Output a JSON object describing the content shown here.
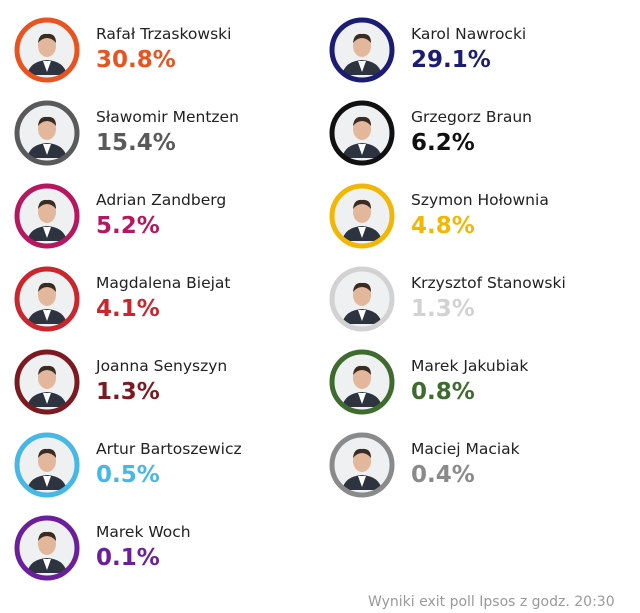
{
  "candidates": [
    {
      "name": "Rafał Trzaskowski",
      "result": "30.8%",
      "color": "#e8531f"
    },
    {
      "name": "Karol Nawrocki",
      "result": "29.1%",
      "color": "#1c1c74"
    },
    {
      "name": "Sławomir Mentzen",
      "result": "15.4%",
      "color": "#5a5a5a"
    },
    {
      "name": "Grzegorz Braun",
      "result": "6.2%",
      "color": "#111111"
    },
    {
      "name": "Adrian Zandberg",
      "result": "5.2%",
      "color": "#b5185f"
    },
    {
      "name": "Szymon Hołownia",
      "result": "4.8%",
      "color": "#f2b705"
    },
    {
      "name": "Magdalena Biejat",
      "result": "4.1%",
      "color": "#c9262e"
    },
    {
      "name": "Krzysztof Stanowski",
      "result": "1.3%",
      "color": "#d2d2d2"
    },
    {
      "name": "Joanna Senyszyn",
      "result": "1.3%",
      "color": "#7b1b21"
    },
    {
      "name": "Marek Jakubiak",
      "result": "0.8%",
      "color": "#3f6b2f"
    },
    {
      "name": "Artur Bartoszewicz",
      "result": "0.5%",
      "color": "#47b8e6"
    },
    {
      "name": "Maciej Maciak",
      "result": "0.4%",
      "color": "#8a8a8a"
    },
    {
      "name": "Marek Woch",
      "result": "0.1%",
      "color": "#6b1f9b"
    }
  ],
  "footer": "Wyniki exit poll Ipsos z godz. 20:30"
}
